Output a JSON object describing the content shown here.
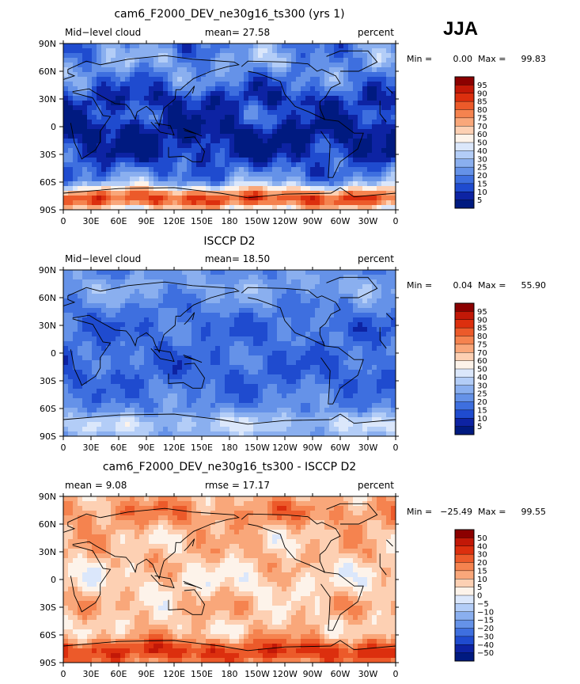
{
  "season": "JJA",
  "chart_data": [
    {
      "type": "heatmap",
      "title": "cam6_F2000_DEV_ne30g16_ts300 (yrs 1)",
      "left_label": "Mid−level cloud",
      "center_label": "mean=  27.58",
      "right_label": "percent",
      "min_label": "Min =",
      "min_value": "0.00",
      "max_label": "Max =",
      "max_value": "99.83",
      "x_ticks": [
        "0",
        "30E",
        "60E",
        "90E",
        "120E",
        "150E",
        "180",
        "150W",
        "120W",
        "90W",
        "60W",
        "30W",
        "0"
      ],
      "y_ticks": [
        "90N",
        "60N",
        "30N",
        "0",
        "30S",
        "60S",
        "90S"
      ],
      "xlim": [
        0,
        360
      ],
      "ylim": [
        -90,
        90
      ],
      "levels": [
        "95",
        "90",
        "85",
        "80",
        "75",
        "70",
        "60",
        "50",
        "40",
        "30",
        "25",
        "20",
        "15",
        "10",
        "5"
      ],
      "colors": [
        "#8b0000",
        "#c21807",
        "#dc2f0e",
        "#ec5a2a",
        "#f5834f",
        "#f9a77a",
        "#fdd0b3",
        "#fdf3ea",
        "#dbe7fb",
        "#b3cdf7",
        "#8aafef",
        "#6592e8",
        "#3e6fdf",
        "#1f4bcf",
        "#0d23a3",
        "#001a80"
      ],
      "field": {
        "base": 18,
        "band_sp": 62,
        "band_np": 8,
        "band_eq": -18,
        "band_30": -12,
        "amp": 10,
        "bias": 0
      }
    },
    {
      "type": "heatmap",
      "title": "ISCCP D2",
      "left_label": "Mid−level cloud",
      "center_label": "mean=  18.50",
      "right_label": "percent",
      "min_label": "Min =",
      "min_value": "0.04",
      "max_label": "Max =",
      "max_value": "55.90",
      "x_ticks": [
        "0",
        "30E",
        "60E",
        "90E",
        "120E",
        "150E",
        "180",
        "150W",
        "120W",
        "90W",
        "60W",
        "30W",
        "0"
      ],
      "y_ticks": [
        "90N",
        "60N",
        "30N",
        "0",
        "30S",
        "60S",
        "90S"
      ],
      "xlim": [
        0,
        360
      ],
      "ylim": [
        -90,
        90
      ],
      "levels": [
        "95",
        "90",
        "85",
        "80",
        "75",
        "70",
        "60",
        "50",
        "40",
        "30",
        "25",
        "20",
        "15",
        "10",
        "5"
      ],
      "colors": [
        "#8b0000",
        "#c21807",
        "#dc2f0e",
        "#ec5a2a",
        "#f5834f",
        "#f9a77a",
        "#fdd0b3",
        "#fdf3ea",
        "#dbe7fb",
        "#b3cdf7",
        "#8aafef",
        "#6592e8",
        "#3e6fdf",
        "#1f4bcf",
        "#0d23a3",
        "#001a80"
      ],
      "field": {
        "base": 20,
        "band_sp": 18,
        "band_np": 8,
        "band_eq": -4,
        "band_30": -4,
        "amp": 6,
        "bias": 0
      }
    },
    {
      "type": "heatmap",
      "title": "cam6_F2000_DEV_ne30g16_ts300 - ISCCP D2",
      "left_label": "mean =    9.08",
      "center_label": "rmse =   17.17",
      "right_label": "percent",
      "min_label": "Min =",
      "min_value": "−25.49",
      "max_label": "Max =",
      "max_value": "99.55",
      "x_ticks": [
        "0",
        "30E",
        "60E",
        "90E",
        "120E",
        "150E",
        "180",
        "150W",
        "120W",
        "90W",
        "60W",
        "30W",
        "0"
      ],
      "y_ticks": [
        "90N",
        "60N",
        "30N",
        "0",
        "30S",
        "60S",
        "90S"
      ],
      "xlim": [
        0,
        360
      ],
      "ylim": [
        -90,
        90
      ],
      "levels": [
        "50",
        "40",
        "30",
        "20",
        "15",
        "10",
        "5",
        "0",
        "−5",
        "−10",
        "−15",
        "−20",
        "−30",
        "−40",
        "−50"
      ],
      "colors": [
        "#8b0000",
        "#c21807",
        "#dc2f0e",
        "#ec5a2a",
        "#f5834f",
        "#f9a77a",
        "#fdd0b3",
        "#fdf3ea",
        "#dbe7fb",
        "#b3cdf7",
        "#8aafef",
        "#6592e8",
        "#3e6fdf",
        "#1f4bcf",
        "#0d23a3",
        "#001a80"
      ],
      "field": {
        "base": 8,
        "band_sp": 30,
        "band_np": 14,
        "band_eq": -4,
        "band_30": 4,
        "amp": 9,
        "bias": 1
      }
    }
  ]
}
